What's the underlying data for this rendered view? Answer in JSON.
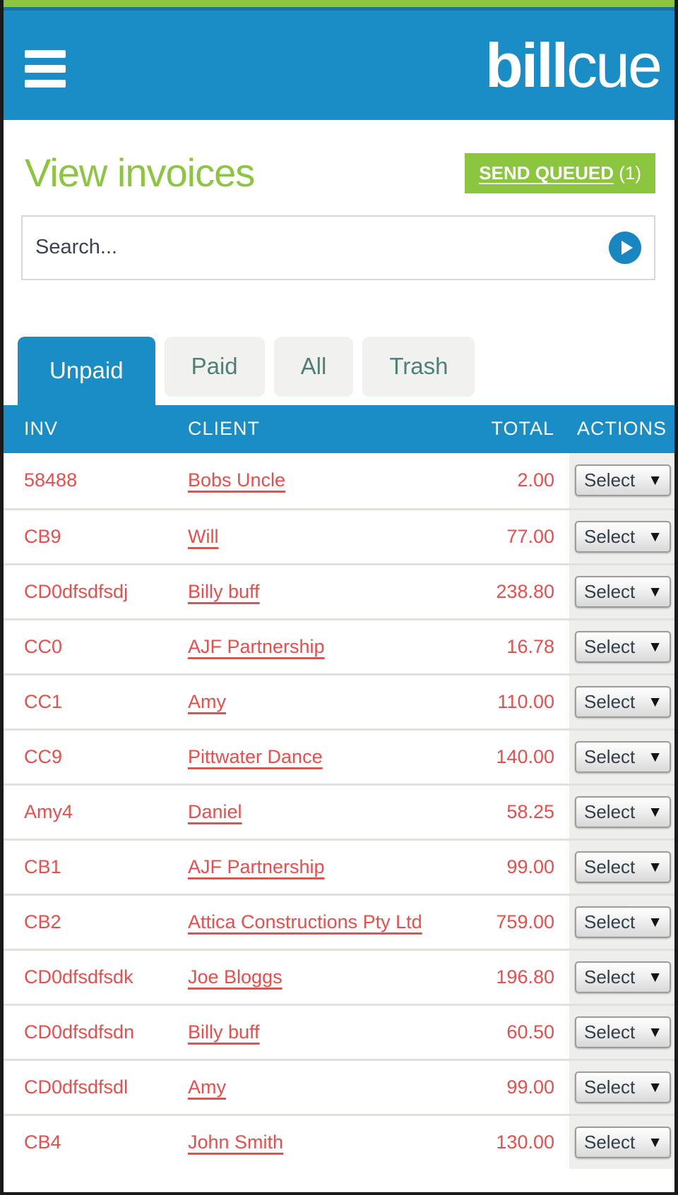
{
  "header": {
    "logo_bold": "bill",
    "logo_light": "cue"
  },
  "page": {
    "title": "View invoices",
    "send_queued_label": "SEND QUEUED",
    "send_queued_count": "(1)"
  },
  "search": {
    "placeholder": "Search..."
  },
  "tabs": [
    {
      "label": "Unpaid",
      "active": true
    },
    {
      "label": "Paid",
      "active": false
    },
    {
      "label": "All",
      "active": false
    },
    {
      "label": "Trash",
      "active": false
    }
  ],
  "table": {
    "columns": [
      "INV",
      "CLIENT",
      "TOTAL",
      "ACTIONS"
    ],
    "action_label": "Select",
    "rows": [
      {
        "inv": "58488",
        "client": "Bobs Uncle",
        "total": "2.00"
      },
      {
        "inv": "CB9",
        "client": "Will",
        "total": "77.00"
      },
      {
        "inv": "CD0dfsdfsdj",
        "client": "Billy buff",
        "total": "238.80"
      },
      {
        "inv": "CC0",
        "client": "AJF Partnership",
        "total": "16.78"
      },
      {
        "inv": "CC1",
        "client": "Amy",
        "total": "110.00"
      },
      {
        "inv": "CC9",
        "client": "Pittwater Dance",
        "total": "140.00"
      },
      {
        "inv": "Amy4",
        "client": "Daniel",
        "total": "58.25"
      },
      {
        "inv": "CB1",
        "client": "AJF Partnership",
        "total": "99.00"
      },
      {
        "inv": "CB2",
        "client": "Attica Constructions Pty Ltd",
        "total": "759.00"
      },
      {
        "inv": "CD0dfsdfsdk",
        "client": "Joe Bloggs",
        "total": "196.80"
      },
      {
        "inv": "CD0dfsdfsdn",
        "client": "Billy buff",
        "total": "60.50"
      },
      {
        "inv": "CD0dfsdfsdl",
        "client": "Amy",
        "total": "99.00"
      },
      {
        "inv": "CB4",
        "client": "John Smith",
        "total": "130.00"
      }
    ]
  },
  "colors": {
    "accent_blue": "#1b8dc6",
    "accent_blue_dark": "#1176a3",
    "accent_green": "#8cc63e",
    "link_red": "#f04b4b",
    "tab_text_teal": "#4f8076",
    "frame_dark": "#1a1a1a"
  }
}
